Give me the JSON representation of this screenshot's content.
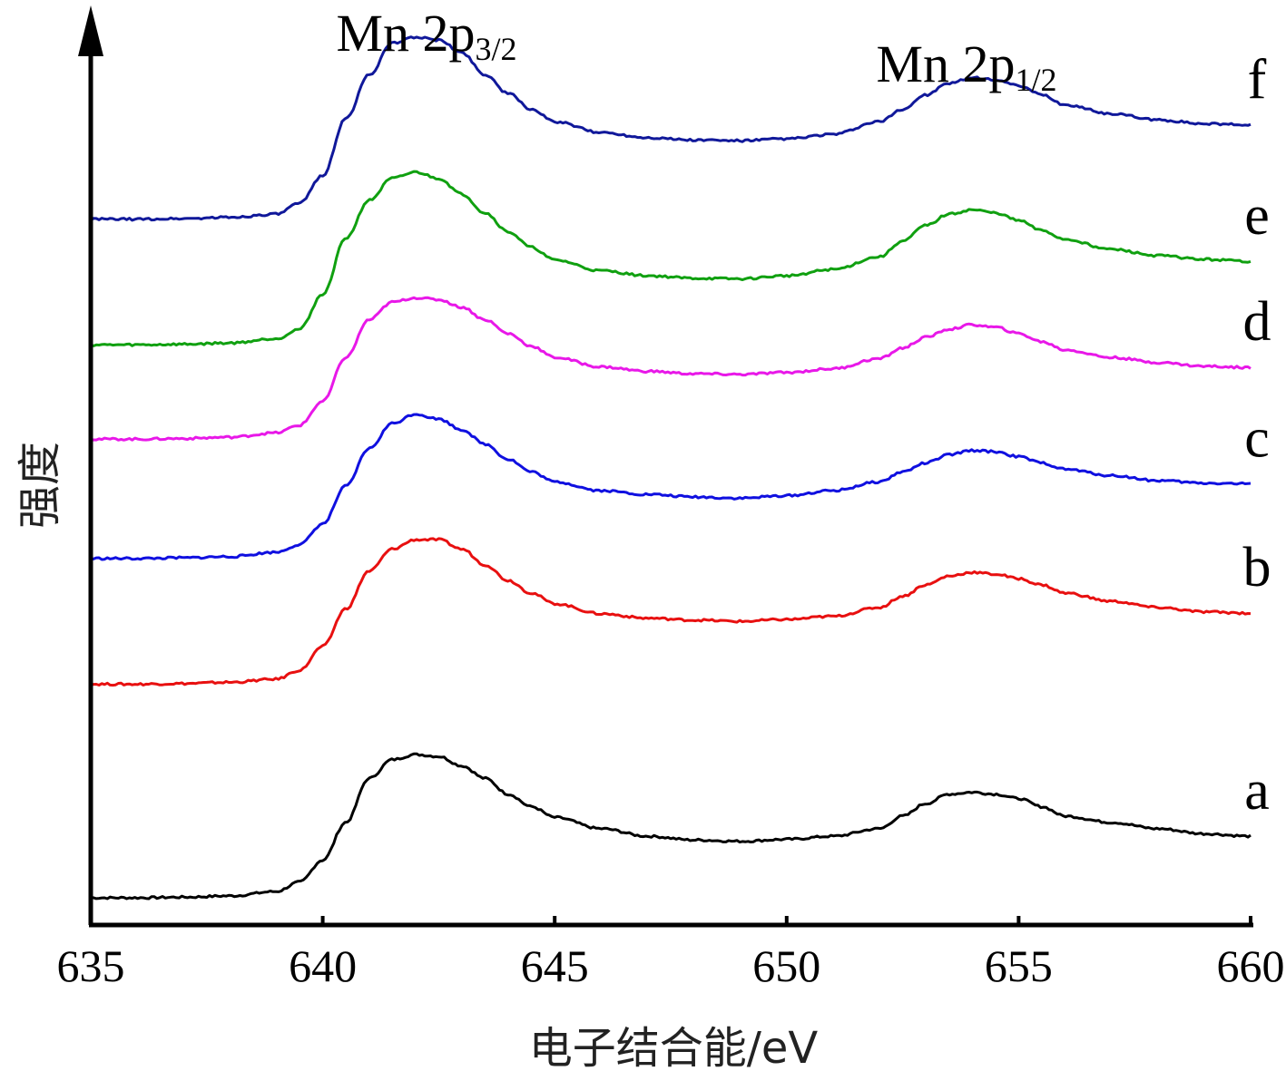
{
  "chart_data": {
    "type": "line",
    "xlabel": "电子结合能/eV",
    "ylabel": "强度",
    "xlim": [
      635,
      660
    ],
    "ylim": [
      0,
      14
    ],
    "xticks": [
      "635",
      "640",
      "645",
      "650",
      "655",
      "660"
    ],
    "yticks_shown": false,
    "grid": false,
    "legend": "inline labels at right end of each curve",
    "annotations": [
      {
        "base": "Mn 2p",
        "sub": "3/2",
        "x": 642.2,
        "y": 13.95
      },
      {
        "base": "Mn 2p",
        "sub": "1/2",
        "x": 654.0,
        "y": 13.2
      }
    ],
    "x": [
      635,
      636,
      637,
      638,
      639,
      639.5,
      640,
      640.5,
      641,
      641.5,
      642,
      642.5,
      643,
      643.5,
      644,
      644.5,
      645,
      646,
      647,
      648,
      649,
      650,
      651,
      652,
      652.5,
      653,
      653.5,
      654,
      654.5,
      655,
      655.5,
      656,
      657,
      658,
      659,
      660
    ],
    "series": [
      {
        "name": "a",
        "color": "#000000",
        "values": [
          0.0,
          0.0,
          0.01,
          0.03,
          0.1,
          0.25,
          0.6,
          1.2,
          1.9,
          2.2,
          2.28,
          2.25,
          2.1,
          1.9,
          1.65,
          1.45,
          1.28,
          1.1,
          0.98,
          0.92,
          0.9,
          0.93,
          0.98,
          1.1,
          1.3,
          1.5,
          1.65,
          1.68,
          1.65,
          1.58,
          1.45,
          1.3,
          1.2,
          1.1,
          1.02,
          0.98
        ]
      },
      {
        "name": "b",
        "color": "#e81010",
        "values": [
          3.4,
          3.4,
          3.41,
          3.43,
          3.48,
          3.62,
          4.0,
          4.6,
          5.2,
          5.55,
          5.7,
          5.7,
          5.55,
          5.3,
          5.05,
          4.85,
          4.68,
          4.52,
          4.45,
          4.42,
          4.4,
          4.43,
          4.48,
          4.62,
          4.8,
          4.98,
          5.12,
          5.18,
          5.15,
          5.08,
          4.98,
          4.85,
          4.72,
          4.62,
          4.55,
          4.53
        ]
      },
      {
        "name": "c",
        "color": "#1010e0",
        "values": [
          5.4,
          5.4,
          5.41,
          5.43,
          5.5,
          5.62,
          5.95,
          6.55,
          7.15,
          7.55,
          7.7,
          7.62,
          7.45,
          7.22,
          6.98,
          6.78,
          6.62,
          6.48,
          6.42,
          6.38,
          6.36,
          6.4,
          6.48,
          6.62,
          6.78,
          6.92,
          7.05,
          7.12,
          7.1,
          7.02,
          6.92,
          6.82,
          6.72,
          6.64,
          6.6,
          6.59
        ]
      },
      {
        "name": "d",
        "color": "#e818e8",
        "values": [
          7.3,
          7.3,
          7.31,
          7.33,
          7.4,
          7.52,
          7.9,
          8.6,
          9.2,
          9.48,
          9.55,
          9.52,
          9.4,
          9.2,
          8.98,
          8.78,
          8.6,
          8.45,
          8.38,
          8.34,
          8.33,
          8.36,
          8.42,
          8.58,
          8.75,
          8.92,
          9.05,
          9.12,
          9.08,
          8.98,
          8.85,
          8.72,
          8.6,
          8.52,
          8.46,
          8.44
        ]
      },
      {
        "name": "e",
        "color": "#10a010",
        "values": [
          8.8,
          8.8,
          8.81,
          8.83,
          8.9,
          9.05,
          9.6,
          10.5,
          11.1,
          11.45,
          11.55,
          11.45,
          11.2,
          10.9,
          10.6,
          10.35,
          10.15,
          9.98,
          9.9,
          9.86,
          9.85,
          9.9,
          10.0,
          10.2,
          10.45,
          10.7,
          10.88,
          10.95,
          10.9,
          10.78,
          10.62,
          10.48,
          10.32,
          10.22,
          10.16,
          10.13
        ]
      },
      {
        "name": "f",
        "color": "#10189a",
        "values": [
          10.8,
          10.8,
          10.81,
          10.83,
          10.88,
          11.05,
          11.5,
          12.4,
          13.1,
          13.6,
          13.7,
          13.65,
          13.45,
          13.1,
          12.8,
          12.55,
          12.35,
          12.18,
          12.1,
          12.06,
          12.05,
          12.08,
          12.15,
          12.35,
          12.55,
          12.78,
          12.96,
          13.05,
          13.02,
          12.92,
          12.78,
          12.62,
          12.48,
          12.38,
          12.32,
          12.3
        ]
      }
    ]
  }
}
